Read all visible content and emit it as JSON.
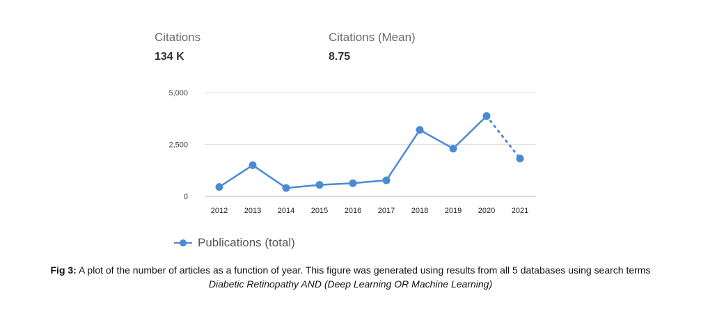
{
  "stats": {
    "citations_label": "Citations",
    "citations_value": "134 K",
    "mean_label": "Citations (Mean)",
    "mean_value": "8.75"
  },
  "chart_data": {
    "type": "line",
    "categories": [
      "2012",
      "2013",
      "2014",
      "2015",
      "2016",
      "2017",
      "2018",
      "2019",
      "2020",
      "2021"
    ],
    "series": [
      {
        "name": "Publications (total)",
        "values": [
          450,
          1500,
          400,
          550,
          630,
          770,
          3200,
          2300,
          3870,
          1820
        ],
        "dotted_from_index": 8,
        "color": "#4a8ad4"
      }
    ],
    "yticks": [
      "5,000",
      "2,500",
      "0"
    ],
    "ylim": [
      0,
      5000
    ],
    "grid": true,
    "legend": "bottom-left"
  },
  "caption": {
    "label": "Fig 3:",
    "text1": " A plot of the number of articles as a function of year.  This figure was generated using results from all 5 databases using search terms ",
    "text_italic": "Diabetic Retinopathy AND (Deep Learning OR Machine Learning)"
  }
}
